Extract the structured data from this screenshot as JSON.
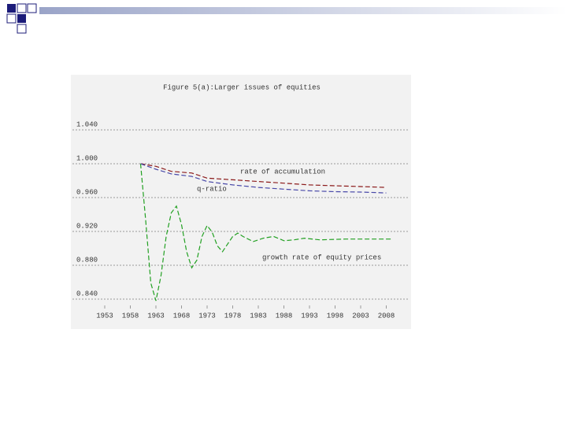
{
  "chart_data": {
    "type": "line",
    "title": "Figure 5(a):Larger issues of equities",
    "xlim": [
      1947,
      2012
    ],
    "xticks": [
      1953,
      1958,
      1963,
      1968,
      1973,
      1978,
      1983,
      1988,
      1993,
      1998,
      2003,
      2008
    ],
    "ylim": [
      0.826,
      1.054
    ],
    "yticks": [
      {
        "value": 1.04,
        "label": "1.040"
      },
      {
        "value": 1.0,
        "label": "1.000"
      },
      {
        "value": 0.96,
        "label": "0.960"
      },
      {
        "value": 0.92,
        "label": "0.920"
      },
      {
        "value": 0.88,
        "label": "0.880"
      },
      {
        "value": 0.84,
        "label": "0.840"
      }
    ],
    "grid": true,
    "series": [
      {
        "name": "rate of accumulation",
        "color": "#8b1a1a",
        "x": [
          1960,
          1963,
          1966,
          1970,
          1973,
          1978,
          1983,
          1988,
          1993,
          1998,
          2003,
          2008
        ],
        "values": [
          1.0,
          0.997,
          0.991,
          0.989,
          0.983,
          0.981,
          0.979,
          0.977,
          0.975,
          0.974,
          0.973,
          0.972
        ]
      },
      {
        "name": "q-ratio",
        "color": "#4848a8",
        "x": [
          1960,
          1963,
          1966,
          1970,
          1973,
          1978,
          1983,
          1988,
          1993,
          1998,
          2003,
          2008
        ],
        "values": [
          1.0,
          0.9935,
          0.988,
          0.985,
          0.979,
          0.975,
          0.972,
          0.97,
          0.968,
          0.967,
          0.9665,
          0.9655
        ]
      },
      {
        "name": "growth rate of equity prices",
        "color": "#22a022",
        "x": [
          1960,
          1961,
          1962,
          1963,
          1964,
          1965,
          1966,
          1967,
          1968,
          1969,
          1970,
          1971,
          1972,
          1973,
          1974,
          1975,
          1976,
          1977,
          1978,
          1979,
          1980,
          1982,
          1984,
          1986,
          1988,
          1990,
          1992,
          1995,
          2000,
          2009
        ],
        "values": [
          1.0,
          0.933,
          0.859,
          0.838,
          0.868,
          0.914,
          0.942,
          0.95,
          0.928,
          0.896,
          0.877,
          0.886,
          0.914,
          0.927,
          0.919,
          0.903,
          0.896,
          0.905,
          0.914,
          0.918,
          0.914,
          0.908,
          0.912,
          0.914,
          0.909,
          0.91,
          0.912,
          0.91,
          0.911,
          0.911
        ]
      }
    ]
  }
}
